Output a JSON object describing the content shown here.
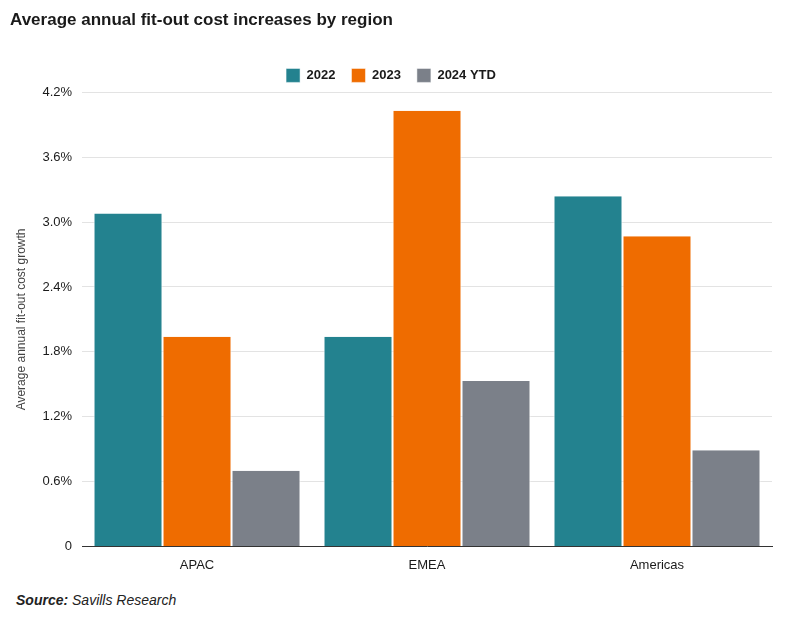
{
  "chart_data": {
    "type": "bar",
    "title": "Average annual fit-out cost increases by region",
    "y_label": "Average annual fit-out cost growth",
    "source": "Source: Savills Research",
    "categories": [
      "APAC",
      "EMEA",
      "Americas"
    ],
    "series": [
      {
        "name": "2022",
        "color": "#23828f",
        "values": [
          3.08,
          1.94,
          3.24
        ]
      },
      {
        "name": "2023",
        "color": "#ef6c00",
        "values": [
          1.94,
          4.03,
          2.87
        ]
      },
      {
        "name": "2024 YTD",
        "color": "#7b8089",
        "values": [
          0.7,
          1.53,
          0.89
        ]
      }
    ],
    "ylim": [
      0,
      4.2
    ],
    "yticks": [
      0,
      {
        "value": 0.6,
        "label": "0.6%"
      },
      {
        "value": 1.2,
        "label": "1.2%"
      },
      {
        "value": 1.8,
        "label": "1.8%"
      },
      {
        "value": 2.4,
        "label": "2.4%"
      },
      {
        "value": 3.0,
        "label": "3.0%"
      },
      {
        "value": 3.6,
        "label": "3.6%"
      },
      {
        "value": 4.2,
        "label": "4.2%"
      }
    ],
    "grid": true,
    "legend": "top"
  }
}
